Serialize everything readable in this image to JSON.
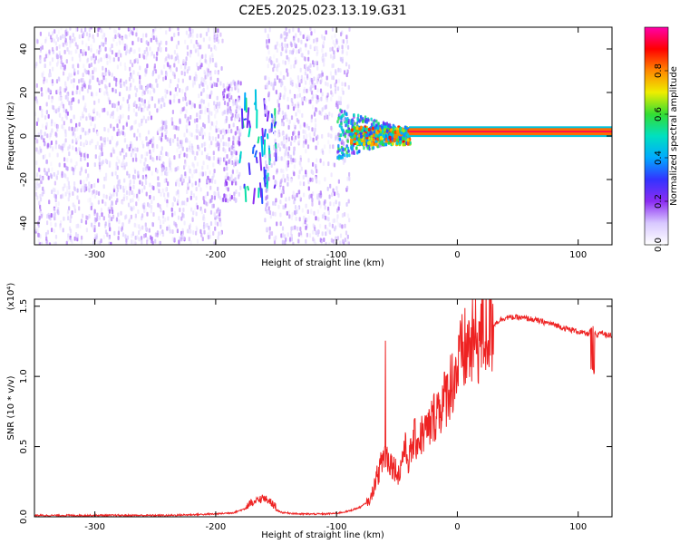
{
  "title": "C2E5.2025.023.13.19.G31",
  "chart_data": [
    {
      "type": "heatmap",
      "xlabel": "Height of straight line (km)",
      "ylabel": "Frequency (Hz)",
      "xlim": [
        -350,
        128
      ],
      "ylim": [
        -50,
        50
      ],
      "xticks": [
        -300,
        -200,
        -100,
        0,
        100
      ],
      "yticks": [
        -40,
        -20,
        0,
        20,
        40
      ],
      "colorbar": {
        "label": "Normalized spectral amplitude",
        "range": [
          0,
          1
        ],
        "ticks": [
          0.0,
          0.2,
          0.4,
          0.6,
          0.8
        ],
        "colors": [
          "#ffffff",
          "#d8c8ff",
          "#8b2cf2",
          "#3333ff",
          "#00aaff",
          "#00e0c0",
          "#33dd33",
          "#eeee00",
          "#ff8800",
          "#ff0000",
          "#ff00aa"
        ]
      },
      "regions": [
        {
          "x_range": [
            -350,
            -195
          ],
          "freq_range": [
            -50,
            50
          ],
          "amplitude": 0.12,
          "pattern": "noise"
        },
        {
          "x_range": [
            -195,
            -180
          ],
          "freq_range": [
            -30,
            25
          ],
          "amplitude": 0.15,
          "pattern": "noise"
        },
        {
          "x_range": [
            -180,
            -150
          ],
          "freq_range": [
            -25,
            15
          ],
          "amplitude": 0.28,
          "pattern": "streaks"
        },
        {
          "x_range": [
            -160,
            -90
          ],
          "freq_range": [
            -50,
            50
          ],
          "amplitude": 0.12,
          "pattern": "noise"
        },
        {
          "x_range": [
            -100,
            -40
          ],
          "freq_range": [
            -10,
            10
          ],
          "amplitude": 0.3,
          "pattern": "cone"
        },
        {
          "x_range": [
            -90,
            -40
          ],
          "freq_range": [
            -4,
            4
          ],
          "amplitude": 0.6,
          "pattern": "band"
        },
        {
          "x_range": [
            -40,
            128
          ],
          "freq_range": [
            1,
            3
          ],
          "amplitude": 0.95,
          "pattern": "carrier"
        }
      ],
      "carrier_frequency": 2
    },
    {
      "type": "line",
      "xlabel": "Height of straight line (km)",
      "ylabel": "SNR (10 * v/v)",
      "y_multiplier": "(x10⁴)",
      "xlim": [
        -350,
        128
      ],
      "ylim": [
        0,
        1.55
      ],
      "xticks": [
        -300,
        -200,
        -100,
        0,
        100
      ],
      "yticks": [
        0.0,
        0.5,
        1.0,
        1.5
      ],
      "series": [
        {
          "color": "#ee2222",
          "x": [
            -350,
            -320,
            -300,
            -280,
            -260,
            -240,
            -220,
            -200,
            -185,
            -175,
            -168,
            -162,
            -155,
            -150,
            -145,
            -130,
            -110,
            -100,
            -90,
            -80,
            -72,
            -68,
            -64,
            -60,
            -56,
            -52,
            -48,
            -44,
            -40,
            -36,
            -32,
            -28,
            -24,
            -20,
            -16,
            -12,
            -8,
            -4,
            0,
            4,
            8,
            12,
            16,
            20,
            25,
            30,
            35,
            40,
            50,
            60,
            70,
            80,
            90,
            100,
            108,
            112,
            115,
            118,
            122,
            128
          ],
          "y": [
            0.01,
            0.01,
            0.01,
            0.01,
            0.01,
            0.01,
            0.015,
            0.02,
            0.03,
            0.06,
            0.09,
            0.12,
            0.1,
            0.05,
            0.03,
            0.02,
            0.02,
            0.025,
            0.04,
            0.07,
            0.12,
            0.25,
            0.35,
            0.45,
            0.4,
            0.35,
            0.3,
            0.5,
            0.4,
            0.55,
            0.55,
            0.6,
            0.62,
            0.7,
            0.78,
            0.8,
            0.9,
            0.98,
            1.05,
            1.15,
            1.2,
            1.22,
            1.25,
            1.3,
            1.33,
            1.37,
            1.4,
            1.42,
            1.42,
            1.41,
            1.39,
            1.37,
            1.34,
            1.32,
            1.3,
            1.35,
            1.28,
            1.32,
            1.3,
            1.29
          ]
        }
      ]
    }
  ]
}
